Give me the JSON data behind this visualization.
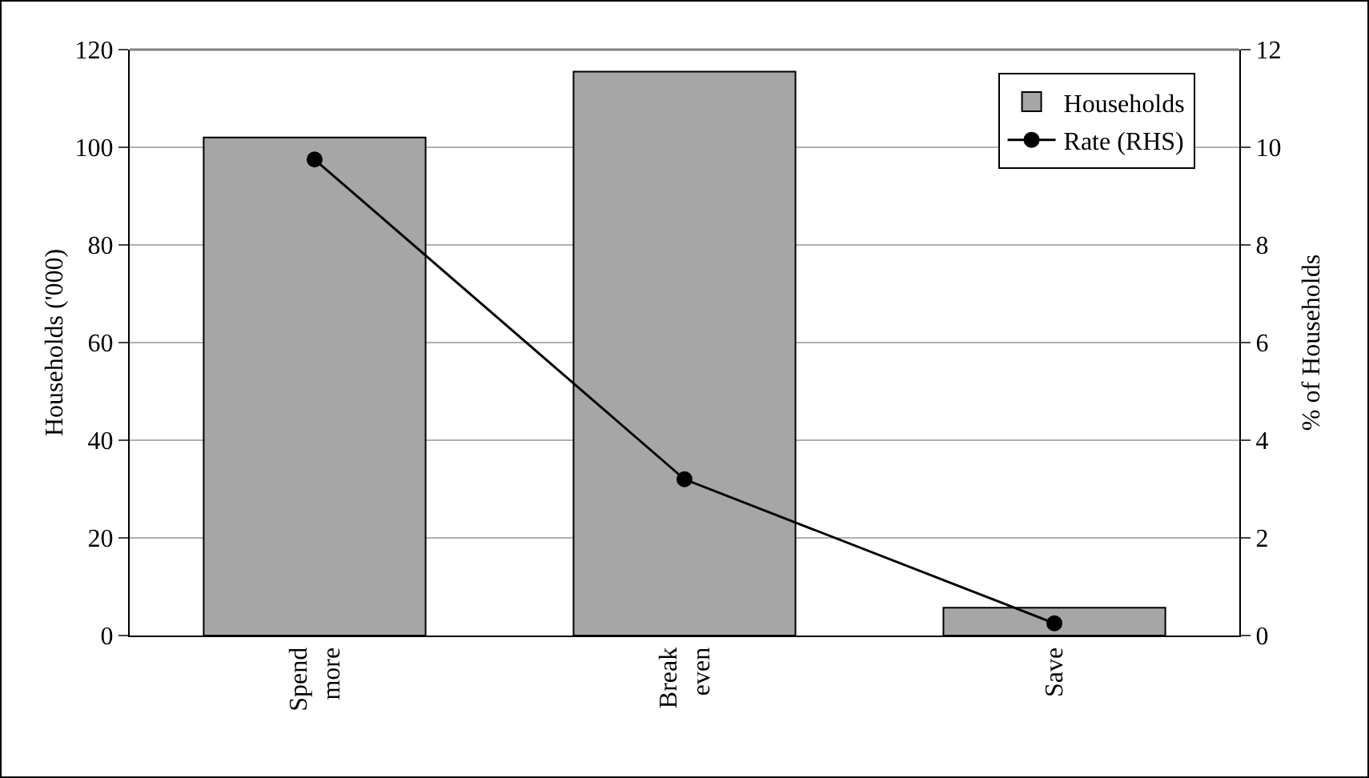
{
  "chart_data": {
    "type": "bar",
    "categories": [
      "Spend more",
      "Break even",
      "Save"
    ],
    "ylabel": "Households ('000)",
    "y2label": "% of Households",
    "series": [
      {
        "name": "Households",
        "color": "#a6a6a6",
        "values": [
          102,
          115.5,
          5.7
        ]
      },
      {
        "name": "Rate (RHS)",
        "type": "line",
        "axis": "y2",
        "color": "#000000",
        "values": [
          9.75,
          3.2,
          0.25
        ]
      }
    ],
    "ylim": [
      0,
      120
    ],
    "yticks": [
      0,
      20,
      40,
      60,
      80,
      100,
      120
    ],
    "y2lim": [
      0,
      12
    ],
    "y2ticks": [
      0,
      2,
      4,
      6,
      8,
      10,
      12
    ],
    "grid": "y",
    "legend": "top right",
    "marker": "circle",
    "line_style": "solid"
  }
}
